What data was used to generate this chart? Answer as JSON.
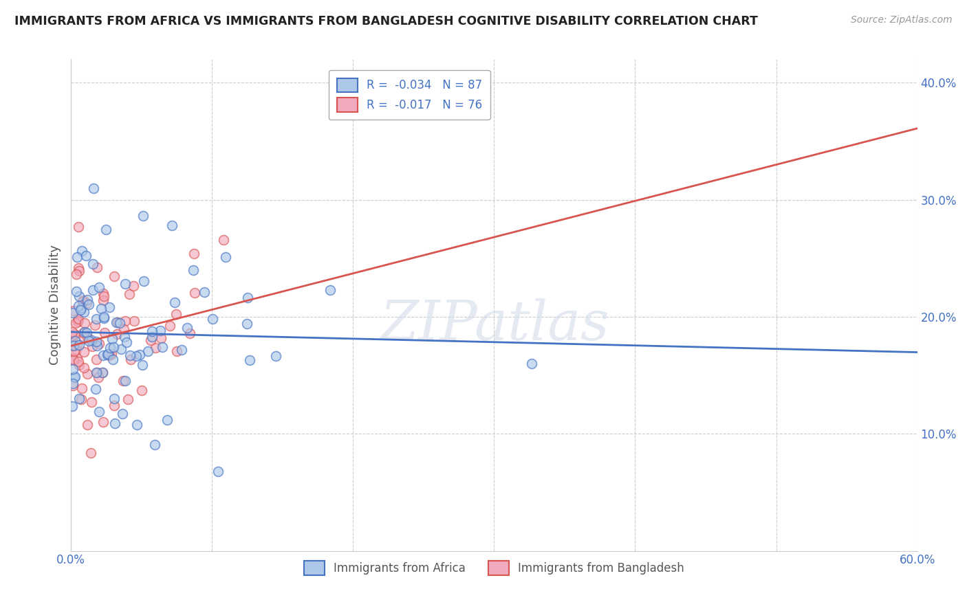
{
  "title": "IMMIGRANTS FROM AFRICA VS IMMIGRANTS FROM BANGLADESH COGNITIVE DISABILITY CORRELATION CHART",
  "source": "Source: ZipAtlas.com",
  "ylabel": "Cognitive Disability",
  "xlim": [
    0.0,
    0.6
  ],
  "ylim": [
    0.0,
    0.42
  ],
  "xticks": [
    0.0,
    0.1,
    0.2,
    0.3,
    0.4,
    0.5,
    0.6
  ],
  "xticklabels": [
    "0.0%",
    "",
    "",
    "",
    "",
    "",
    "60.0%"
  ],
  "yticks_right": [
    0.1,
    0.2,
    0.3,
    0.4
  ],
  "yticklabels_right": [
    "10.0%",
    "20.0%",
    "30.0%",
    "40.0%"
  ],
  "legend1_label": "R =  -0.034   N = 87",
  "legend2_label": "R =  -0.017   N = 76",
  "series1_color": "#adc8e8",
  "series2_color": "#f2abbe",
  "line1_color": "#4472c4",
  "line2_color": "#d9534f",
  "watermark": "ZIPatlas",
  "series1_name": "Immigrants from Africa",
  "series2_name": "Immigrants from Bangladesh",
  "R1": -0.034,
  "N1": 87,
  "R2": -0.017,
  "N2": 76,
  "background_color": "#ffffff",
  "grid_color": "#cccccc",
  "title_color": "#222222",
  "axis_label_color": "#555555",
  "tick_color": "#4472c4",
  "scatter_size": 100,
  "scatter_alpha": 0.65,
  "scatter_linewidth": 1.2
}
